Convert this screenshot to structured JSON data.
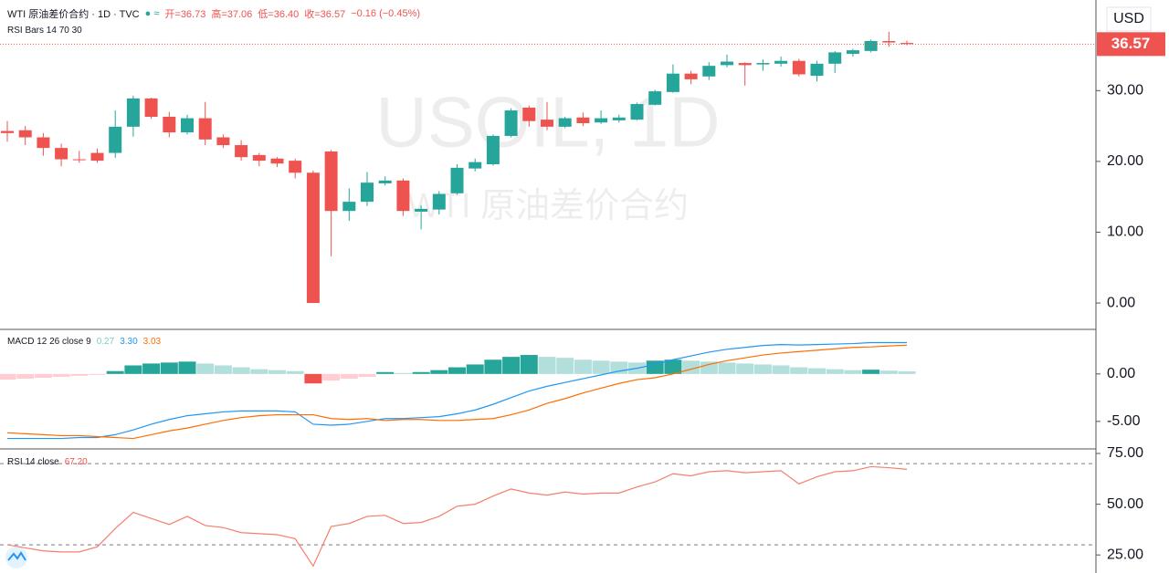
{
  "chart_data": [
    {
      "type": "candlestick",
      "title": "WTI 原油差价合约 · 1D · TVC",
      "legend": [
        "开=36.73",
        "高=37.06",
        "低=36.40",
        "收=36.57",
        "−0.16 (−0.45%)"
      ],
      "indicator": "RSI Bars 14 70 30",
      "watermark": [
        "USOIL, 1D",
        "WTI 原油差价合约"
      ],
      "currency": "USD",
      "last_price": {
        "value": 36.57,
        "label": "36.57"
      },
      "up_color": "#26a69a",
      "down_color": "#ef5350",
      "open": [
        24.3,
        24.4,
        23.4,
        21.9,
        20.3,
        21.2,
        21.2,
        24.9,
        28.9,
        26.3,
        24.1,
        26.1,
        23.4,
        22.3,
        20.9,
        20.4,
        20.1,
        18.4,
        21.4,
        13.0,
        14.3,
        16.9,
        17.3,
        12.9,
        13.2,
        15.5,
        19.0,
        19.6,
        23.6,
        27.6,
        25.9,
        24.9,
        26.2,
        25.5,
        25.8,
        25.9,
        28.0,
        29.8,
        32.4,
        32.0,
        33.6,
        33.9,
        33.7,
        33.8,
        34.2,
        32.1,
        33.8,
        35.2,
        35.6,
        37.0,
        36.73
      ],
      "high": [
        25.7,
        25.0,
        24.0,
        22.5,
        21.5,
        21.8,
        27.2,
        29.3,
        29.0,
        27.0,
        26.6,
        28.4,
        23.8,
        23.0,
        21.2,
        20.6,
        20.4,
        18.7,
        21.6,
        16.2,
        18.5,
        17.9,
        17.6,
        13.8,
        15.8,
        19.6,
        20.4,
        23.8,
        27.5,
        27.9,
        28.4,
        26.3,
        26.9,
        27.2,
        26.6,
        28.3,
        30.1,
        33.7,
        32.8,
        34.0,
        35.1,
        34.0,
        34.4,
        34.8,
        34.5,
        34.2,
        35.6,
        35.9,
        37.2,
        38.3,
        37.06
      ],
      "low": [
        22.8,
        22.3,
        20.8,
        19.3,
        19.8,
        19.8,
        20.5,
        23.5,
        26.0,
        23.4,
        23.8,
        22.3,
        21.9,
        20.1,
        19.3,
        19.2,
        17.6,
        0.0,
        6.6,
        11.6,
        13.7,
        16.6,
        12.3,
        10.4,
        12.5,
        15.3,
        18.6,
        19.4,
        23.4,
        24.9,
        24.4,
        24.7,
        25.0,
        25.3,
        25.5,
        25.8,
        27.9,
        29.7,
        30.9,
        31.5,
        33.3,
        30.7,
        32.8,
        33.4,
        32.0,
        31.3,
        32.5,
        34.8,
        35.4,
        36.2,
        36.4
      ],
      "close": [
        24.0,
        23.4,
        21.9,
        20.3,
        20.2,
        20.1,
        24.9,
        28.9,
        26.3,
        24.1,
        26.1,
        23.1,
        22.3,
        20.6,
        20.1,
        19.7,
        18.4,
        0.0,
        13.0,
        14.3,
        17.0,
        17.3,
        13.0,
        13.3,
        15.4,
        19.1,
        19.9,
        23.6,
        27.2,
        25.7,
        24.9,
        26.1,
        25.4,
        26.1,
        26.2,
        28.1,
        29.9,
        32.4,
        31.6,
        33.5,
        34.1,
        33.6,
        33.9,
        34.2,
        32.3,
        33.8,
        35.4,
        35.7,
        37.0,
        36.8,
        36.57
      ],
      "ylim": [
        -3.6,
        42.8
      ],
      "yticks": [
        {
          "value": 0,
          "label": "0.00"
        },
        {
          "value": 10,
          "label": "10.00"
        },
        {
          "value": 20,
          "label": "20.00"
        },
        {
          "value": 30,
          "label": "30.00"
        }
      ]
    },
    {
      "type": "macd",
      "title": "MACD 12 26 close 9",
      "legend_values": [
        "0.27",
        "3.30",
        "3.03"
      ],
      "histogram": [
        -0.6,
        -0.5,
        -0.4,
        -0.3,
        -0.2,
        -0.1,
        0.3,
        0.9,
        1.1,
        1.2,
        1.3,
        1.1,
        0.9,
        0.7,
        0.5,
        0.4,
        0.3,
        -1.0,
        -0.7,
        -0.5,
        -0.3,
        0.2,
        0.1,
        0.2,
        0.4,
        0.7,
        1.0,
        1.5,
        1.8,
        2.0,
        1.8,
        1.7,
        1.5,
        1.4,
        1.3,
        1.2,
        1.4,
        1.5,
        1.4,
        1.3,
        1.2,
        1.1,
        1.0,
        0.9,
        0.7,
        0.6,
        0.5,
        0.4,
        0.45,
        0.35,
        0.27
      ],
      "macd": [
        -6.8,
        -6.8,
        -6.8,
        -6.8,
        -6.7,
        -6.7,
        -6.4,
        -5.9,
        -5.3,
        -4.8,
        -4.4,
        -4.2,
        -4.0,
        -3.9,
        -3.9,
        -3.9,
        -4.0,
        -5.3,
        -5.4,
        -5.3,
        -5.0,
        -4.7,
        -4.7,
        -4.6,
        -4.5,
        -4.2,
        -3.8,
        -3.2,
        -2.5,
        -1.8,
        -1.3,
        -0.9,
        -0.5,
        -0.1,
        0.3,
        0.6,
        1.0,
        1.5,
        1.9,
        2.3,
        2.6,
        2.8,
        3.0,
        3.1,
        3.05,
        3.1,
        3.15,
        3.2,
        3.3,
        3.3,
        3.3
      ],
      "signal": [
        -6.2,
        -6.3,
        -6.4,
        -6.5,
        -6.5,
        -6.6,
        -6.7,
        -6.8,
        -6.4,
        -6.0,
        -5.7,
        -5.3,
        -4.9,
        -4.6,
        -4.4,
        -4.3,
        -4.3,
        -4.3,
        -4.7,
        -4.8,
        -4.7,
        -4.9,
        -4.8,
        -4.8,
        -4.9,
        -4.9,
        -4.8,
        -4.7,
        -4.3,
        -3.8,
        -3.1,
        -2.6,
        -2.0,
        -1.5,
        -1.0,
        -0.6,
        -0.4,
        0.0,
        0.5,
        1.0,
        1.4,
        1.7,
        2.0,
        2.2,
        2.35,
        2.5,
        2.65,
        2.8,
        2.85,
        2.95,
        3.03
      ],
      "histogram_colors": [
        "#26a69a",
        "#b2dfdb",
        "#ffcdd2",
        "#ef5350"
      ],
      "macd_color": "#2196f3",
      "signal_color": "#ff6d00",
      "ylim": [
        -7.9,
        4.6
      ],
      "yticks": [
        {
          "value": 0,
          "label": "0.00"
        },
        {
          "value": -5,
          "label": "-5.00"
        }
      ]
    },
    {
      "type": "line",
      "title": "RSI 14 close",
      "value_label": "67.20",
      "values": [
        30,
        28.5,
        27,
        26.5,
        26.5,
        29,
        38,
        46,
        43,
        40,
        44,
        39.5,
        38.5,
        36,
        35.5,
        35,
        33,
        19.5,
        39,
        40.5,
        44,
        44.5,
        40.5,
        41,
        44,
        49,
        50,
        54,
        57.5,
        55.5,
        54.5,
        56,
        55,
        55.5,
        55.5,
        58.5,
        61,
        65,
        64,
        66,
        66.5,
        65.5,
        66,
        66.5,
        60,
        63.5,
        66,
        66.5,
        68.5,
        68,
        67.2
      ],
      "color": "#f57f6e",
      "bands": [
        70,
        30
      ],
      "ylim": [
        16.1,
        76.8
      ],
      "yticks": [
        {
          "value": 25,
          "label": "25.00"
        },
        {
          "value": 50,
          "label": "50.00"
        },
        {
          "value": 75,
          "label": "75.00"
        }
      ]
    }
  ]
}
